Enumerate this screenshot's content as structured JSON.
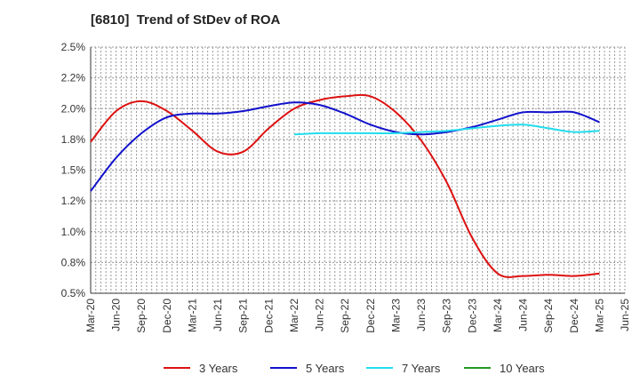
{
  "title": "[6810]  Trend of StDev of ROA",
  "chart_data": {
    "type": "line",
    "title": "[6810]  Trend of StDev of ROA",
    "xlabel": "",
    "ylabel": "",
    "ylim": [
      0.5,
      2.5
    ],
    "y_ticks": [
      "2.5%",
      "2.2%",
      "2.0%",
      "1.8%",
      "1.5%",
      "1.2%",
      "1.0%",
      "0.8%",
      "0.5%"
    ],
    "x_ticks": [
      "Mar-20",
      "Jun-20",
      "Sep-20",
      "Dec-20",
      "Mar-21",
      "Jun-21",
      "Sep-21",
      "Dec-21",
      "Mar-22",
      "Jun-22",
      "Sep-22",
      "Dec-22",
      "Mar-23",
      "Jun-23",
      "Sep-23",
      "Dec-23",
      "Mar-24",
      "Jun-24",
      "Sep-24",
      "Dec-24",
      "Mar-25",
      "Jun-25"
    ],
    "grid": true,
    "legend_position": "bottom",
    "series": [
      {
        "name": "3 Years",
        "color": "#dd1111",
        "points": [
          [
            0,
            1.73
          ],
          [
            1,
            1.98
          ],
          [
            2,
            2.06
          ],
          [
            3,
            1.98
          ],
          [
            4,
            1.82
          ],
          [
            5,
            1.65
          ],
          [
            6,
            1.65
          ],
          [
            7,
            1.84
          ],
          [
            8,
            2.0
          ],
          [
            9,
            2.07
          ],
          [
            10,
            2.1
          ],
          [
            11,
            2.1
          ],
          [
            12,
            1.97
          ],
          [
            13,
            1.74
          ],
          [
            14,
            1.4
          ],
          [
            15,
            0.95
          ],
          [
            16,
            0.66
          ],
          [
            17,
            0.64
          ],
          [
            18,
            0.65
          ],
          [
            19,
            0.64
          ],
          [
            20,
            0.66
          ]
        ]
      },
      {
        "name": "5 Years",
        "color": "#1111cc",
        "points": [
          [
            0,
            1.33
          ],
          [
            1,
            1.6
          ],
          [
            2,
            1.8
          ],
          [
            3,
            1.93
          ],
          [
            4,
            1.96
          ],
          [
            5,
            1.96
          ],
          [
            6,
            1.98
          ],
          [
            7,
            2.02
          ],
          [
            8,
            2.05
          ],
          [
            9,
            2.03
          ],
          [
            10,
            1.96
          ],
          [
            11,
            1.87
          ],
          [
            12,
            1.81
          ],
          [
            13,
            1.79
          ],
          [
            14,
            1.81
          ],
          [
            15,
            1.85
          ],
          [
            16,
            1.91
          ],
          [
            17,
            1.97
          ],
          [
            18,
            1.97
          ],
          [
            19,
            1.97
          ],
          [
            20,
            1.89
          ]
        ]
      },
      {
        "name": "7 Years",
        "color": "#22ddee",
        "points": [
          [
            8,
            1.79
          ],
          [
            9,
            1.8
          ],
          [
            10,
            1.8
          ],
          [
            11,
            1.8
          ],
          [
            12,
            1.8
          ],
          [
            13,
            1.81
          ],
          [
            14,
            1.82
          ],
          [
            15,
            1.84
          ],
          [
            16,
            1.86
          ],
          [
            17,
            1.87
          ],
          [
            18,
            1.84
          ],
          [
            19,
            1.81
          ],
          [
            20,
            1.82
          ]
        ]
      },
      {
        "name": "10 Years",
        "color": "#229922",
        "points": []
      }
    ]
  }
}
